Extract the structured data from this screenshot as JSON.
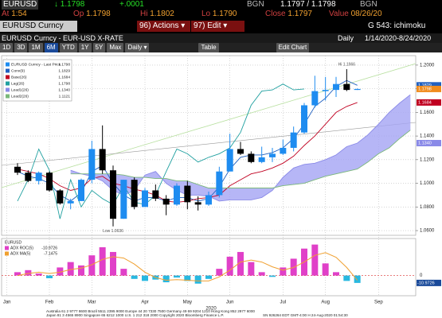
{
  "quote_bar": {
    "ticker": "EURUSD",
    "last": "↓ 1.1798",
    "change": "+.0001",
    "source": "BGN",
    "bid_ask": "1.1797 / 1.1798",
    "source2": "BGN"
  },
  "stats": [
    {
      "label": "At",
      "value": "1:54"
    },
    {
      "label": "Op",
      "value": "1.1798"
    },
    {
      "label": "Hi",
      "value": "1.1802"
    },
    {
      "label": "Lo",
      "value": "1.1790"
    },
    {
      "label": "Close",
      "value": "1.1797"
    },
    {
      "label": "Value",
      "value": "08/26/20"
    }
  ],
  "command_bar": {
    "security": "EURUSD Curncy",
    "actions_num": "96)",
    "actions": "Actions ▾",
    "edit_num": "97)",
    "edit": "Edit ▾",
    "page": "G 543: ichimoku"
  },
  "title_bar": {
    "description": "EURUSD Curncy - EUR-USD X-RATE",
    "frequency": "Daily",
    "range": "1/14/2020-8/24/2020"
  },
  "toolbar": {
    "ranges": [
      "1D",
      "3D",
      "1M",
      "6M",
      "YTD",
      "1Y",
      "5Y",
      "Max"
    ],
    "selected_range": "6M",
    "frequency": "Daily ▾",
    "table": "Table",
    "edit_chart": "Edit Chart"
  },
  "footer": [
    "Australia 61 2 9777 8600 Brazil 5511 2395 9000 Europe 44 20 7330 7500 Germany 49 69 9204 1210 Hong Kong 852 2977 6000",
    "Japan 81 3 4565 8900   Singapore 65 6212 1000   U.S. 1 212 318 2000   Copyright 2020 Bloomberg Finance L.P.",
    "SN 926264 EDT  GMT-4:00 H 24-Aug-2020 01:54:30"
  ],
  "chart_data": [
    {
      "type": "candlestick",
      "x_year_label": "2020",
      "categories": [
        "Jan",
        null,
        null,
        null,
        "Feb",
        null,
        null,
        null,
        "Mar",
        null,
        null,
        null,
        null,
        "Apr",
        null,
        null,
        null,
        "May",
        null,
        null,
        null,
        "Jun",
        null,
        null,
        null,
        null,
        "Jul",
        null,
        null,
        null,
        "Aug",
        null,
        null,
        null,
        null,
        "Sep",
        null,
        null,
        null
      ],
      "price_name": "EURUSD Curncy - Last Price",
      "price_last_label": "1.1798",
      "up_color": "#1e8cf0",
      "down_color": "#000000",
      "open": [
        null,
        1.114,
        1.109,
        1.102,
        1.109,
        1.094,
        1.083,
        1.085,
        1.103,
        1.129,
        1.111,
        1.07,
        1.103,
        1.08,
        1.094,
        1.087,
        1.082,
        1.098,
        1.084,
        1.082,
        1.09,
        1.11,
        1.129,
        1.125,
        1.118,
        1.122,
        1.125,
        1.13,
        1.143,
        1.166,
        1.178,
        1.179,
        1.184,
        1.179,
        null,
        null,
        null,
        null,
        null
      ],
      "high": [
        null,
        1.117,
        1.111,
        1.11,
        1.11,
        1.095,
        1.087,
        1.104,
        1.136,
        1.149,
        1.115,
        1.103,
        1.105,
        1.096,
        1.099,
        1.09,
        1.1,
        1.102,
        1.089,
        1.093,
        1.114,
        1.142,
        1.135,
        1.127,
        1.131,
        1.13,
        1.137,
        1.148,
        1.168,
        1.191,
        1.19,
        1.19,
        1.1966,
        1.1802,
        null,
        null,
        null,
        null,
        null
      ],
      "low": [
        null,
        1.107,
        1.101,
        1.099,
        1.093,
        1.082,
        1.078,
        1.085,
        1.1,
        1.108,
        1.0636,
        1.07,
        1.078,
        1.08,
        1.085,
        1.073,
        1.081,
        1.078,
        1.077,
        1.081,
        1.088,
        1.11,
        1.124,
        1.117,
        1.117,
        1.118,
        1.124,
        1.127,
        1.142,
        1.164,
        1.17,
        1.173,
        1.178,
        1.179,
        null,
        null,
        null,
        null,
        null
      ],
      "close": [
        null,
        1.109,
        1.102,
        1.109,
        1.094,
        1.083,
        1.085,
        1.103,
        1.129,
        1.111,
        1.07,
        1.103,
        1.08,
        1.094,
        1.087,
        1.082,
        1.098,
        1.084,
        1.082,
        1.09,
        1.11,
        1.129,
        1.125,
        1.118,
        1.122,
        1.125,
        1.13,
        1.143,
        1.166,
        1.178,
        1.179,
        1.184,
        1.179,
        1.1798,
        null,
        null,
        null,
        null,
        null
      ],
      "high_label": "Hi 1.1966",
      "low_label": "Low 1.0636",
      "series": [
        {
          "name": "Conv(9)",
          "color": "#2060c0",
          "last_label": "1.1829",
          "values": [
            null,
            1.11,
            1.106,
            1.104,
            1.1,
            1.09,
            1.085,
            1.092,
            1.11,
            1.115,
            1.1,
            1.09,
            1.085,
            1.088,
            1.088,
            1.085,
            1.088,
            1.088,
            1.085,
            1.087,
            1.097,
            1.112,
            1.122,
            1.124,
            1.124,
            1.126,
            1.13,
            1.138,
            1.15,
            1.165,
            1.172,
            1.182,
            1.187,
            1.1829,
            null,
            null,
            null,
            null,
            null
          ]
        },
        {
          "name": "Base(26)",
          "color": "#c00020",
          "last_label": "1.1684",
          "values": [
            null,
            1.112,
            1.11,
            1.108,
            1.104,
            1.098,
            1.094,
            1.096,
            1.104,
            1.106,
            1.1,
            1.098,
            1.095,
            1.093,
            1.09,
            1.085,
            1.084,
            1.085,
            1.087,
            1.088,
            1.09,
            1.098,
            1.103,
            1.108,
            1.11,
            1.113,
            1.117,
            1.123,
            1.132,
            1.14,
            1.15,
            1.16,
            1.165,
            1.1684,
            null,
            null,
            null,
            null,
            null
          ]
        },
        {
          "name": "Lag(26)",
          "color": "#20a0a0",
          "last_label": "1.1798",
          "values": [
            null,
            1.085,
            1.103,
            1.129,
            1.111,
            1.07,
            1.103,
            1.08,
            1.094,
            1.087,
            1.082,
            1.098,
            1.084,
            1.082,
            1.09,
            1.11,
            1.129,
            1.125,
            1.118,
            1.122,
            1.125,
            1.13,
            1.143,
            1.166,
            1.178,
            1.179,
            1.184,
            1.179,
            1.1798,
            null,
            null,
            null,
            null,
            null,
            null,
            null,
            null,
            null,
            null
          ]
        },
        {
          "name": "Lead1(26)",
          "color": "#8a8ae8",
          "last_label": "1.1340",
          "values": [
            null,
            null,
            null,
            null,
            null,
            null,
            1.111,
            1.108,
            1.106,
            1.102,
            1.094,
            1.09,
            1.094,
            1.107,
            1.11,
            1.1,
            1.094,
            1.09,
            1.09,
            1.089,
            1.085,
            1.086,
            1.086,
            1.086,
            1.088,
            1.094,
            1.105,
            1.113,
            1.116,
            1.117,
            1.12,
            1.124,
            1.131,
            1.134,
            1.141,
            1.15,
            1.16,
            1.168,
            1.175
          ]
        },
        {
          "name": "Lead2(26)",
          "color": "#7ab87a",
          "last_label": "1.1121",
          "values": [
            null,
            null,
            null,
            null,
            null,
            null,
            1.108,
            1.108,
            1.108,
            1.108,
            1.108,
            1.107,
            1.105,
            1.105,
            1.104,
            1.104,
            1.102,
            1.102,
            1.099,
            1.096,
            1.096,
            1.096,
            1.096,
            1.096,
            1.096,
            1.096,
            1.098,
            1.099,
            1.1,
            1.103,
            1.106,
            1.108,
            1.11,
            1.1121,
            1.118,
            1.125,
            1.13,
            1.138,
            1.145
          ]
        }
      ],
      "cloud_color": "#a4a4f4",
      "ylim": [
        1.056,
        1.208
      ],
      "yticks": [
        {
          "value": 1.06,
          "label": "1.0600"
        },
        {
          "value": 1.08,
          "label": "1.0800"
        },
        {
          "value": 1.1,
          "label": "1.1000"
        },
        {
          "value": 1.12,
          "label": "1.1200"
        },
        {
          "value": 1.14,
          "label": "1.1400"
        },
        {
          "value": 1.16,
          "label": "1.1600"
        },
        {
          "value": 1.18,
          "label": "1.1800"
        },
        {
          "value": 1.2,
          "label": "1.2000"
        }
      ],
      "grid": true
    },
    {
      "type": "bar",
      "title": "EURUSD",
      "ylim": [
        -30,
        55
      ],
      "yticks": [
        0
      ],
      "series": [
        {
          "name": "ADX ROC(5)",
          "type": "bar",
          "pos_color": "#e040c8",
          "neg_color": "#28b8e0",
          "last_label": "-10.9726",
          "values": [
            null,
            5,
            8,
            3,
            -4,
            12,
            20,
            15,
            30,
            42,
            35,
            10,
            -5,
            -8,
            -6,
            -10,
            -3,
            -8,
            -12,
            -5,
            10,
            28,
            35,
            20,
            5,
            -2,
            12,
            25,
            40,
            46,
            18,
            5,
            -8,
            -10.9726,
            null,
            null,
            null,
            null,
            null
          ]
        },
        {
          "name": "ADX MA(5)",
          "type": "line",
          "color": "#f0a030",
          "last_label": "-7.1475",
          "values": [
            null,
            0,
            3,
            5,
            3,
            5,
            9,
            11,
            16,
            24,
            28,
            26,
            17,
            5,
            -3,
            -7,
            -6,
            -7,
            -8,
            -8,
            -2,
            8,
            20,
            23,
            20,
            13,
            8,
            12,
            20,
            30,
            34,
            27,
            12,
            -7.1475,
            null,
            null,
            null,
            null,
            null
          ]
        }
      ]
    }
  ]
}
